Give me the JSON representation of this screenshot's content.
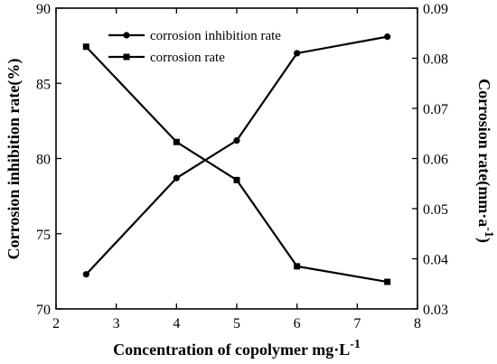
{
  "chart_data": {
    "type": "line",
    "x_axis": {
      "label_main": "Concentration of copolymer ",
      "label_unit": "mg",
      "label_unit_dot": "·",
      "label_unit_tail": "L",
      "label_unit_exp": "-1",
      "range": [
        2,
        8
      ],
      "ticks": [
        2,
        3,
        4,
        5,
        6,
        7,
        8
      ]
    },
    "y_left": {
      "label": "Corrosion inhibition rate(%)",
      "range": [
        70,
        90
      ],
      "ticks": [
        70,
        75,
        80,
        85,
        90
      ]
    },
    "y_right": {
      "label_main": "Corrosion rate(mm·a",
      "label_exp": "-1",
      "label_tail": ")",
      "range": [
        0.03,
        0.09
      ],
      "ticks": [
        "0.03",
        "0.04",
        "0.05",
        "0.06",
        "0.07",
        "0.08",
        "0.09"
      ]
    },
    "grid": false,
    "legend_position": "top-center",
    "series": [
      {
        "name": "corrosion inhibition rate",
        "axis": "left",
        "marker": "circle",
        "color": "#000000",
        "x": [
          2.5,
          4,
          5,
          6,
          7.5
        ],
        "y": [
          72.3,
          78.7,
          81.2,
          87.0,
          88.1
        ]
      },
      {
        "name": "corrosion rate",
        "axis": "right",
        "marker": "square",
        "color": "#000000",
        "x": [
          2.5,
          4,
          5,
          6,
          7.5
        ],
        "y": [
          0.0823,
          0.0633,
          0.0557,
          0.0385,
          0.0354
        ]
      }
    ]
  }
}
